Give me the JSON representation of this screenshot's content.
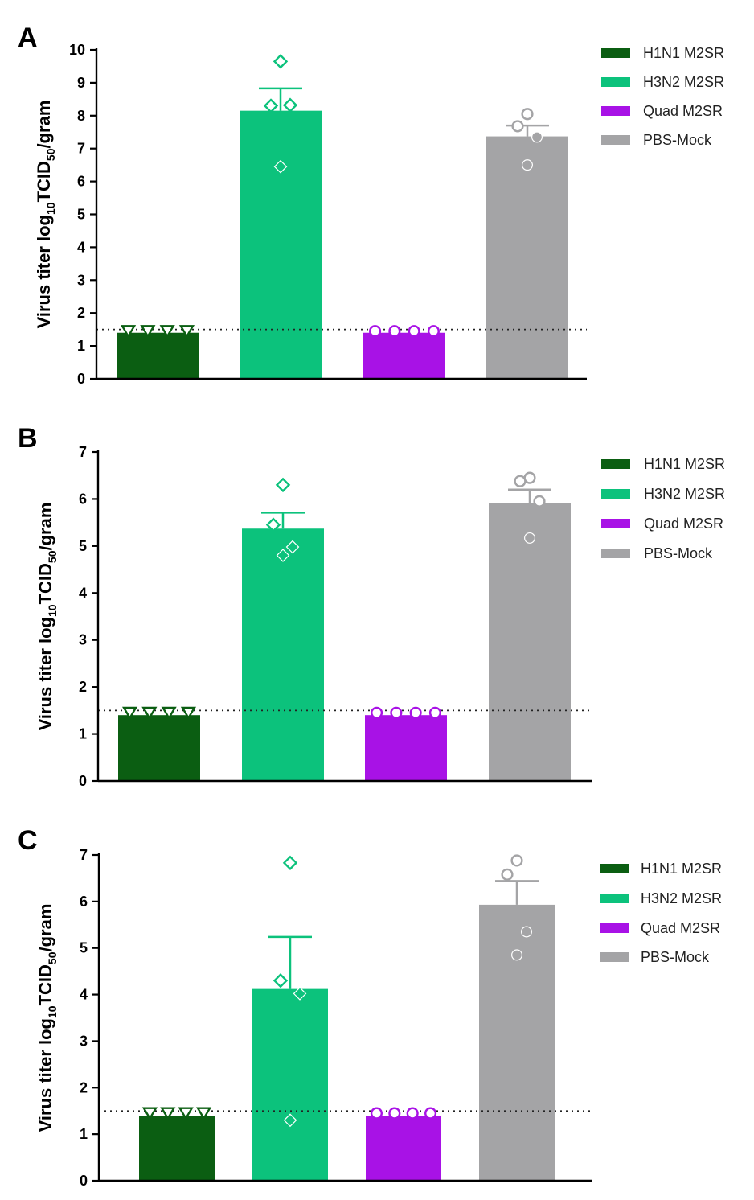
{
  "colors": {
    "h1n1": "#0b5e12",
    "h3n2": "#0cc27c",
    "quad": "#a812e6",
    "pbs": "#a4a4a6",
    "axis": "#000000"
  },
  "chart_data": [
    {
      "type": "bar",
      "panel": "A",
      "ylabel": {
        "prefix": "Virus titer log",
        "sub1": "10",
        "mid": "TCID",
        "sub2": "50",
        "suffix": "/gram"
      },
      "ylim": [
        0,
        10
      ],
      "yticks": [
        0,
        1,
        2,
        3,
        4,
        5,
        6,
        7,
        8,
        9,
        10
      ],
      "limit_of_detection": 1.5,
      "legend": [
        "H1N1 M2SR",
        "H3N2 M2SR",
        "Quad M2SR",
        "PBS-Mock"
      ],
      "series": [
        {
          "name": "H1N1 M2SR",
          "color_key": "h1n1",
          "marker": "triangle",
          "mean": 1.4,
          "sem": 0,
          "points": [
            1.45,
            1.45,
            1.45,
            1.45
          ]
        },
        {
          "name": "H3N2 M2SR",
          "color_key": "h3n2",
          "marker": "diamond",
          "mean": 8.15,
          "sem": 0.68,
          "points": [
            9.65,
            8.3,
            8.32,
            6.45
          ]
        },
        {
          "name": "Quad M2SR",
          "color_key": "quad",
          "marker": "circle",
          "mean": 1.4,
          "sem": 0,
          "points": [
            1.45,
            1.45,
            1.45,
            1.45
          ]
        },
        {
          "name": "PBS-Mock",
          "color_key": "pbs",
          "marker": "circle",
          "mean": 7.37,
          "sem": 0.33,
          "points": [
            8.05,
            7.68,
            7.35,
            6.5
          ]
        }
      ]
    },
    {
      "type": "bar",
      "panel": "B",
      "ylabel": {
        "prefix": "Virus titer log",
        "sub1": "10",
        "mid": "TCID",
        "sub2": "50",
        "suffix": "/gram"
      },
      "ylim": [
        0,
        7
      ],
      "yticks": [
        0,
        1,
        2,
        3,
        4,
        5,
        6,
        7
      ],
      "limit_of_detection": 1.5,
      "legend": [
        "H1N1 M2SR",
        "H3N2 M2SR",
        "Quad M2SR",
        "PBS-Mock"
      ],
      "series": [
        {
          "name": "H1N1 M2SR",
          "color_key": "h1n1",
          "marker": "triangle",
          "mean": 1.4,
          "sem": 0,
          "points": [
            1.45,
            1.45,
            1.45,
            1.45
          ]
        },
        {
          "name": "H3N2 M2SR",
          "color_key": "h3n2",
          "marker": "diamond",
          "mean": 5.37,
          "sem": 0.34,
          "points": [
            6.3,
            5.45,
            4.98,
            4.8
          ]
        },
        {
          "name": "Quad M2SR",
          "color_key": "quad",
          "marker": "circle",
          "mean": 1.4,
          "sem": 0,
          "points": [
            1.45,
            1.45,
            1.45,
            1.45
          ]
        },
        {
          "name": "PBS-Mock",
          "color_key": "pbs",
          "marker": "circle",
          "mean": 5.92,
          "sem": 0.28,
          "points": [
            6.45,
            6.38,
            5.95,
            5.17
          ]
        }
      ]
    },
    {
      "type": "bar",
      "panel": "C",
      "ylabel": {
        "prefix": "Virus titer log",
        "sub1": "10",
        "mid": "TCID",
        "sub2": "50",
        "suffix": "/gram"
      },
      "ylim": [
        0,
        7
      ],
      "yticks": [
        0,
        1,
        2,
        3,
        4,
        5,
        6,
        7
      ],
      "limit_of_detection": 1.5,
      "legend": [
        "H1N1 M2SR",
        "H3N2 M2SR",
        "Quad M2SR",
        "PBS-Mock"
      ],
      "series": [
        {
          "name": "H1N1 M2SR",
          "color_key": "h1n1",
          "marker": "triangle",
          "mean": 1.4,
          "sem": 0,
          "points": [
            1.45,
            1.45,
            1.45,
            1.45
          ]
        },
        {
          "name": "H3N2 M2SR",
          "color_key": "h3n2",
          "marker": "diamond",
          "mean": 4.12,
          "sem": 1.12,
          "points": [
            6.83,
            4.3,
            4.02,
            1.3
          ]
        },
        {
          "name": "Quad M2SR",
          "color_key": "quad",
          "marker": "circle",
          "mean": 1.4,
          "sem": 0,
          "points": [
            1.45,
            1.45,
            1.45,
            1.45
          ]
        },
        {
          "name": "PBS-Mock",
          "color_key": "pbs",
          "marker": "circle",
          "mean": 5.93,
          "sem": 0.51,
          "points": [
            6.88,
            6.58,
            5.35,
            4.85
          ]
        }
      ]
    }
  ]
}
